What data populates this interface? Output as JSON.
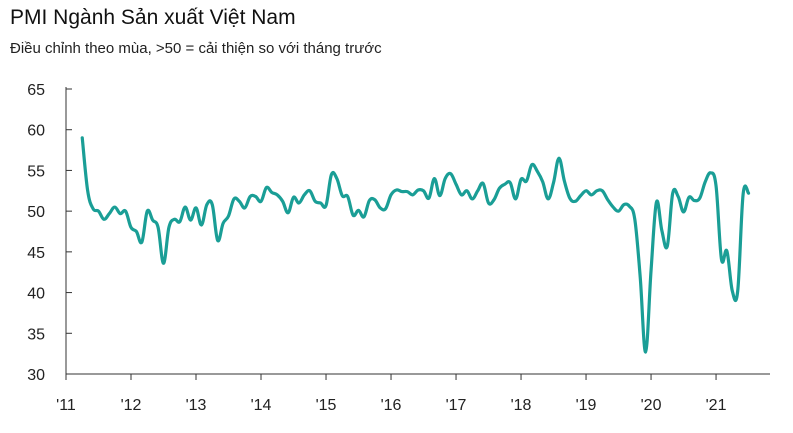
{
  "header": {
    "title": "PMI Ngành Sản xuất Việt Nam",
    "subtitle": "Điều chỉnh theo mùa, >50 = cải thiện so với tháng trước"
  },
  "chart_data": {
    "type": "line",
    "title": "PMI Ngành Sản xuất Việt Nam",
    "subtitle": "Điều chỉnh theo mùa, >50 = cải thiện so với tháng trước",
    "xlabel": "",
    "ylabel": "",
    "ylim": [
      30,
      65
    ],
    "yticks": [
      30,
      35,
      40,
      45,
      50,
      55,
      60,
      65
    ],
    "xlim": [
      2011.0,
      2021.83
    ],
    "xticks": [
      {
        "year": 2011,
        "label": "'11"
      },
      {
        "year": 2012,
        "label": "'12"
      },
      {
        "year": 2013,
        "label": "'13"
      },
      {
        "year": 2014,
        "label": "'14"
      },
      {
        "year": 2015,
        "label": "'15"
      },
      {
        "year": 2016,
        "label": "'16"
      },
      {
        "year": 2017,
        "label": "'17"
      },
      {
        "year": 2018,
        "label": "'18"
      },
      {
        "year": 2019,
        "label": "'19"
      },
      {
        "year": 2020,
        "label": "'20"
      },
      {
        "year": 2021,
        "label": "'21"
      }
    ],
    "grid": false,
    "colors": {
      "line": "#1a9e96",
      "axis": "#333333",
      "text": "#222222"
    },
    "series": [
      {
        "name": "PMI",
        "start": "2011-04",
        "values": [
          59.0,
          52.5,
          50.3,
          50.0,
          49.0,
          49.7,
          50.5,
          49.7,
          50.0,
          48.0,
          47.5,
          46.2,
          50.0,
          48.9,
          48.0,
          43.6,
          48.0,
          49.0,
          48.7,
          50.5,
          48.9,
          50.4,
          48.3,
          50.8,
          50.8,
          46.4,
          48.5,
          49.4,
          51.5,
          51.2,
          50.4,
          51.8,
          51.8,
          51.2,
          52.9,
          52.3,
          52.0,
          51.2,
          49.8,
          51.7,
          51.0,
          52.0,
          52.5,
          51.2,
          51.0,
          50.7,
          54.5,
          54.0,
          51.9,
          51.8,
          49.5,
          50.1,
          49.3,
          51.3,
          51.4,
          50.4,
          50.3,
          52.0,
          52.6,
          52.4,
          52.4,
          52.0,
          52.6,
          52.5,
          51.6,
          54.0,
          51.9,
          54.0,
          54.6,
          53.3,
          52.0,
          52.5,
          51.5,
          52.5,
          53.4,
          51.0,
          51.4,
          52.8,
          53.3,
          53.5,
          51.5,
          53.9,
          53.7,
          55.7,
          54.9,
          53.6,
          51.5,
          53.5,
          56.5,
          53.7,
          51.6,
          51.2,
          51.9,
          52.5,
          52.0,
          52.5,
          52.5,
          51.4,
          50.5,
          50.0,
          50.8,
          50.6,
          49.0,
          41.9,
          32.7,
          42.7,
          51.1,
          47.6,
          45.7,
          52.2,
          51.8,
          49.9,
          51.7,
          51.3,
          51.6,
          53.6,
          54.7,
          53.1,
          44.1,
          45.1,
          40.2,
          40.2,
          52.1,
          52.2
        ]
      }
    ]
  }
}
